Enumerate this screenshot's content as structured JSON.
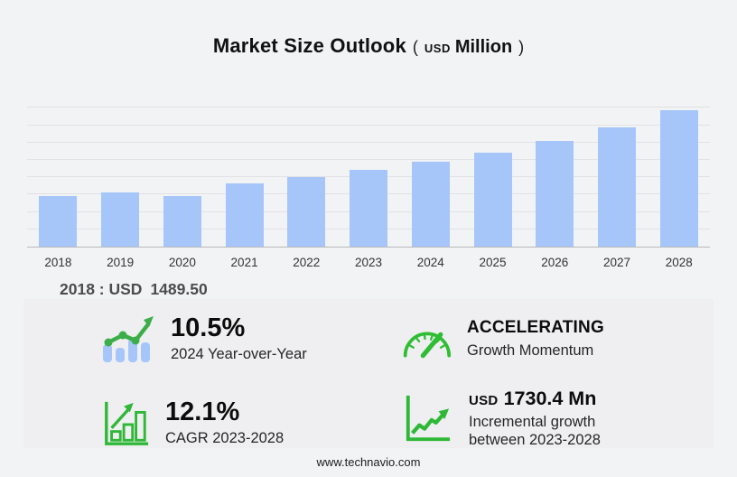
{
  "title": {
    "main": "Market Size Outlook",
    "paren_open": "(",
    "currency": "USD",
    "unit": "Million",
    "paren_close": ")"
  },
  "chart_data": {
    "type": "bar",
    "title": "Market Size Outlook (USD Million)",
    "categories": [
      "2018",
      "2019",
      "2020",
      "2021",
      "2022",
      "2023",
      "2024",
      "2025",
      "2026",
      "2027",
      "2028"
    ],
    "values": [
      1489.5,
      1594,
      1489.5,
      1855,
      2040,
      2248.6,
      2484.7,
      2744,
      3083,
      3475,
      3979
    ],
    "xlabel": "",
    "ylabel": "",
    "ylim": [
      0,
      4300
    ],
    "grid": true,
    "gridline_count": 8,
    "legend": "none",
    "bar_color": "#a6c6fa",
    "labeled_point": {
      "year": "2018",
      "value": "1489.50",
      "unit": "USD Million"
    }
  },
  "annotation": {
    "label": "2018 : USD",
    "value": "1489.50"
  },
  "stats": {
    "yoy": {
      "value": "10.5%",
      "label": "2024 Year-over-Year",
      "icon": "bar-chart-trend-icon"
    },
    "momentum": {
      "value": "ACCELERATING",
      "label": "Growth Momentum",
      "icon": "speedometer-icon"
    },
    "cagr": {
      "value": "12.1%",
      "label": "CAGR 2023-2028",
      "icon": "growth-bars-icon"
    },
    "incremental": {
      "currency": "USD",
      "value": "1730.4 Mn",
      "label_line1": "Incremental growth",
      "label_line2": "between 2023-2028",
      "icon": "line-chart-icon"
    }
  },
  "footer": {
    "website": "www.technavio.com"
  },
  "colors": {
    "bar": "#a6c6fa",
    "accent_green": "#2fb837",
    "background": "#f2f3f5",
    "panel": "#efeff1",
    "gridline": "#e2e2e4",
    "axis": "#b9b9bb"
  }
}
